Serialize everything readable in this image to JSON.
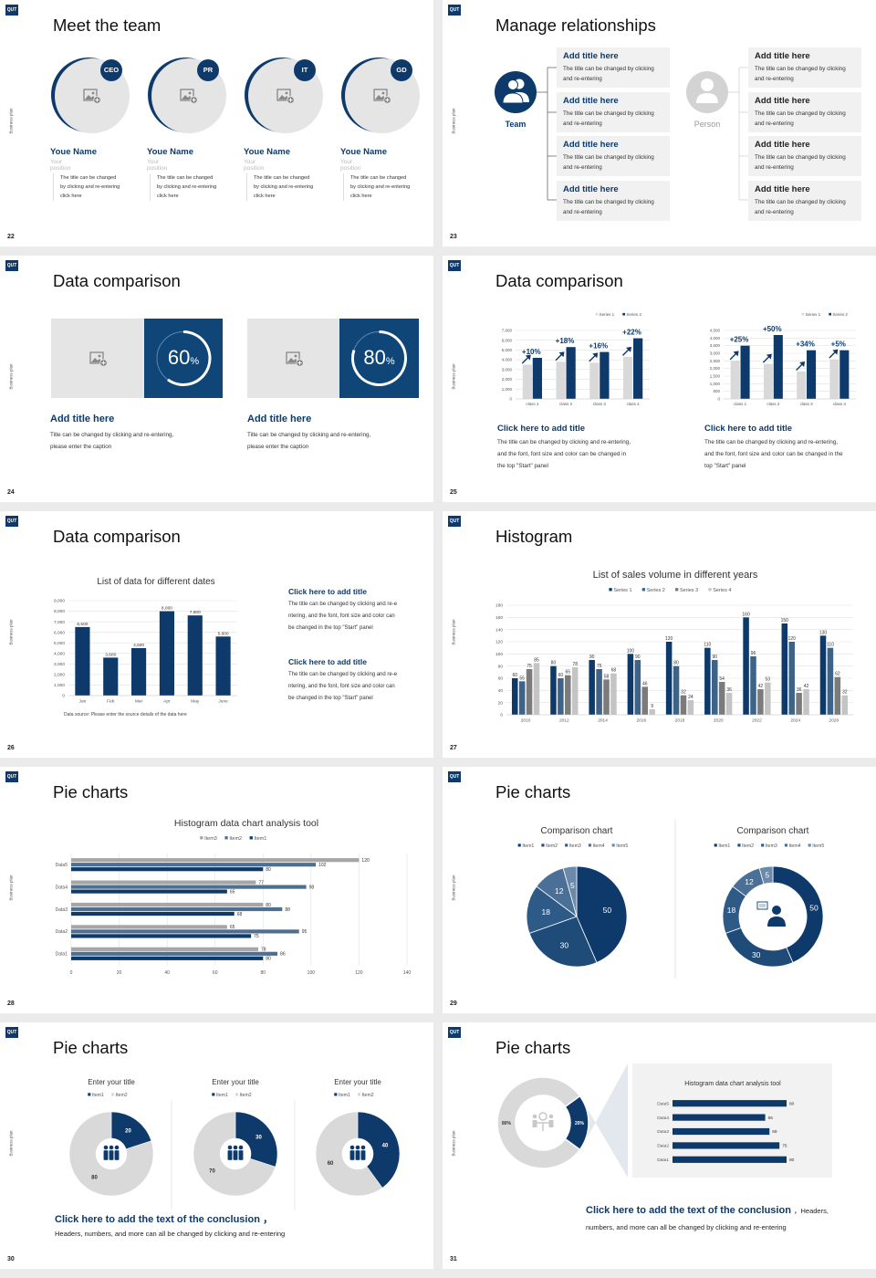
{
  "common": {
    "logo": "QUT",
    "side_label": "Business plan",
    "navy": "#0d3a6b"
  },
  "s22": {
    "page": "22",
    "title": "Meet the team",
    "members": [
      {
        "badge": "CEO",
        "name": "Youe Name",
        "position": "Your position",
        "desc": [
          "The title can be changed",
          "by clicking and re-entering",
          "click here"
        ]
      },
      {
        "badge": "PR",
        "name": "Youe Name",
        "position": "Your position",
        "desc": [
          "The title can be changed",
          "by clicking and re-entering",
          "click here"
        ]
      },
      {
        "badge": "IT",
        "name": "Youe Name",
        "position": "Your position",
        "desc": [
          "The title can be changed",
          "by clicking and re-entering",
          "click here"
        ]
      },
      {
        "badge": "GD",
        "name": "Youe Name",
        "position": "Your position",
        "desc": [
          "The title can be changed",
          "by clicking and re-entering",
          "click here"
        ]
      }
    ]
  },
  "s23": {
    "page": "23",
    "title": "Manage relationships",
    "team_label": "Team",
    "person_label": "Person",
    "box_title": "Add title here",
    "box_line1": "The title can be changed by clicking",
    "box_line2": "and re-entering"
  },
  "s24": {
    "page": "24",
    "title": "Data comparison",
    "cards": [
      {
        "percent": 60,
        "value": "60",
        "unit": "%",
        "title": "Add title here",
        "line1": "Title can be changed by clicking and re-entering,",
        "line2": "please enter the caption"
      },
      {
        "percent": 80,
        "value": "80",
        "unit": "%",
        "title": "Add title here",
        "line1": "Title can be changed by clicking and re-entering,",
        "line2": "please enter the caption"
      }
    ]
  },
  "s25": {
    "page": "25",
    "title": "Data comparison",
    "blocks": [
      {
        "title": "Click here to add title",
        "lines": [
          "The title can be changed by clicking and re-entering,",
          "and the font, font size and color can be changed in",
          "the top \"Start\" panel"
        ]
      },
      {
        "title": "Click here to add title",
        "lines": [
          "The title can be changed by clicking and re-entering,",
          "and the font, font size and color can be changed in the",
          "top \"Start\" panel"
        ]
      }
    ]
  },
  "s26": {
    "page": "26",
    "title": "Data comparison",
    "blocks": [
      {
        "title": "Click here to add title",
        "lines": [
          "The title can be changed by clicking and re-e",
          "ntering, and the font, font size and color can",
          "be changed in the top \"Start\" panel"
        ]
      },
      {
        "title": "Click here to add title",
        "lines": [
          "The title can be changed by clicking and re-e",
          "ntering, and the font, font size and color can",
          "be changed in the top \"Start\" panel"
        ]
      }
    ]
  },
  "s27": {
    "page": "27",
    "title": "Histogram"
  },
  "s28": {
    "page": "28",
    "title": "Pie charts"
  },
  "s29": {
    "page": "29",
    "title": "Pie charts"
  },
  "s30": {
    "page": "30",
    "title": "Pie charts",
    "conclusion": "Click here to add the text of the conclusion ，",
    "line": "Headers, numbers, and more can all be changed by clicking and re-entering"
  },
  "s31": {
    "page": "31",
    "title": "Pie charts",
    "conclusion": "Click here to add the text of the conclusion",
    "conclusion_tail": "，Headers,",
    "line": "numbers, and more can all be changed by clicking and re-entering"
  },
  "chart_data": [
    {
      "type": "bar",
      "categories": [
        "class 1",
        "class 2",
        "class 3",
        "class 4"
      ],
      "series": [
        {
          "name": "Series 1",
          "color": "#d9d9d9",
          "values": [
            3500,
            3800,
            3700,
            4300
          ]
        },
        {
          "name": "Series 2",
          "color": "#0d3a6b",
          "values": [
            4200,
            5300,
            4800,
            6200
          ]
        }
      ],
      "ylim": [
        0,
        7000
      ],
      "yticks": [
        0,
        1000,
        2000,
        3000,
        4000,
        5000,
        6000,
        7000
      ],
      "annotations": [
        "+10%",
        "+18%",
        "+16%",
        "+22%"
      ],
      "legend": "top-right",
      "grid": true
    },
    {
      "type": "bar",
      "categories": [
        "class 1",
        "class 2",
        "class 3",
        "class 4"
      ],
      "series": [
        {
          "name": "Series 1",
          "color": "#d9d9d9",
          "values": [
            2500,
            2300,
            1800,
            2600
          ]
        },
        {
          "name": "Series 2",
          "color": "#0d3a6b",
          "values": [
            3500,
            4200,
            3200,
            3200
          ]
        }
      ],
      "ylim": [
        0,
        4500
      ],
      "yticks": [
        0,
        500,
        1000,
        1500,
        2000,
        2500,
        3000,
        3500,
        4000,
        4500
      ],
      "annotations": [
        "+25%",
        "+50%",
        "+34%",
        "+5%"
      ],
      "legend": "top-right",
      "grid": true
    },
    {
      "type": "bar",
      "title": "List of data for different dates",
      "categories": [
        "Jan",
        "Feb",
        "Mar",
        "Apr",
        "May",
        "June"
      ],
      "series": [
        {
          "color": "#0d3a6b",
          "values": [
            6500,
            3600,
            4500,
            8000,
            7600,
            5600
          ]
        }
      ],
      "ylim": [
        0,
        9000
      ],
      "yticks": [
        0,
        1000,
        2000,
        3000,
        4000,
        5000,
        6000,
        7000,
        8000,
        9000
      ],
      "data_labels": true,
      "grid": true,
      "note": "Data source: Please enter the source details of the data here"
    },
    {
      "type": "bar",
      "title": "List of sales volume in different years",
      "categories": [
        "2010",
        "2012",
        "2014",
        "2016",
        "2018",
        "2020",
        "2022",
        "2024",
        "2026"
      ],
      "series": [
        {
          "name": "Series 1",
          "color": "#0d3a6b",
          "values": [
            60,
            80,
            90,
            100,
            120,
            110,
            160,
            150,
            130
          ]
        },
        {
          "name": "Series 2",
          "color": "#3d6389",
          "values": [
            55,
            60,
            75,
            90,
            80,
            90,
            96,
            120,
            110
          ]
        },
        {
          "name": "Series 3",
          "color": "#7b7b7b",
          "values": [
            75,
            65,
            58,
            46,
            32,
            54,
            42,
            36,
            62
          ]
        },
        {
          "name": "Series 4",
          "color": "#c4c4c4",
          "values": [
            85,
            78,
            68,
            9,
            24,
            36,
            53,
            42,
            32
          ]
        }
      ],
      "ylim": [
        0,
        180
      ],
      "yticks": [
        0,
        20,
        40,
        60,
        80,
        100,
        120,
        140,
        160,
        180
      ],
      "data_labels": true,
      "legend": "top",
      "grid": true
    },
    {
      "type": "hbar",
      "title": "Histogram data chart analysis tool",
      "categories": [
        "Data1",
        "Data2",
        "Data3",
        "Data4",
        "Data5"
      ],
      "series": [
        {
          "name": "Item3",
          "color": "#a6a6a6",
          "values": [
            78,
            65,
            80,
            77,
            120
          ]
        },
        {
          "name": "Item2",
          "color": "#4f6f91",
          "values": [
            86,
            95,
            88,
            98,
            102
          ]
        },
        {
          "name": "Item1",
          "color": "#0d3a6b",
          "values": [
            80,
            75,
            68,
            65,
            80
          ]
        }
      ],
      "xlim": [
        0,
        140
      ],
      "xticks": [
        0,
        20,
        40,
        60,
        80,
        100,
        120,
        140
      ],
      "data_labels": true,
      "legend": "top",
      "grid": true
    },
    {
      "type": "pie",
      "title": "Comparison chart",
      "labels": [
        "Item1",
        "Item2",
        "Item3",
        "Item4",
        "Item5"
      ],
      "values": [
        50,
        30,
        18,
        12,
        5
      ],
      "colors": [
        "#0d3a6b",
        "#1f4b79",
        "#2e5a87",
        "#4a7098",
        "#6c89a9"
      ],
      "legend": "top"
    },
    {
      "type": "donut",
      "title": "Comparison chart",
      "labels": [
        "Item1",
        "Item2",
        "Item3",
        "Item4",
        "Item5"
      ],
      "values": [
        50,
        30,
        18,
        12,
        5
      ],
      "colors": [
        "#0d3a6b",
        "#1f4b79",
        "#2e5a87",
        "#4a7098",
        "#6c89a9"
      ],
      "legend": "top"
    },
    {
      "type": "donut",
      "title": "Enter your title",
      "labels": [
        "Item1",
        "Item2"
      ],
      "values": [
        20,
        80
      ],
      "colors": [
        "#0d3a6b",
        "#d9d9d9"
      ],
      "legend": "top"
    },
    {
      "type": "donut",
      "title": "Enter your title",
      "labels": [
        "Item1",
        "Item2"
      ],
      "values": [
        30,
        70
      ],
      "colors": [
        "#0d3a6b",
        "#d9d9d9"
      ],
      "legend": "top"
    },
    {
      "type": "donut",
      "title": "Enter your title",
      "labels": [
        "Item1",
        "Item2"
      ],
      "values": [
        40,
        60
      ],
      "colors": [
        "#0d3a6b",
        "#d9d9d9"
      ],
      "legend": "top"
    },
    {
      "type": "donut",
      "values": [
        20,
        80
      ],
      "value_labels": [
        "20%",
        "80%"
      ],
      "colors": [
        "#0d3a6b",
        "#d9d9d9"
      ]
    },
    {
      "type": "hbar",
      "title": "Histogram data chart analysis tool",
      "categories": [
        "Data1",
        "Data2",
        "Data3",
        "Data4",
        "Data5"
      ],
      "series": [
        {
          "color": "#0d3a6b",
          "values": [
            80,
            75,
            68,
            65,
            80
          ]
        }
      ],
      "data_labels": true
    }
  ]
}
